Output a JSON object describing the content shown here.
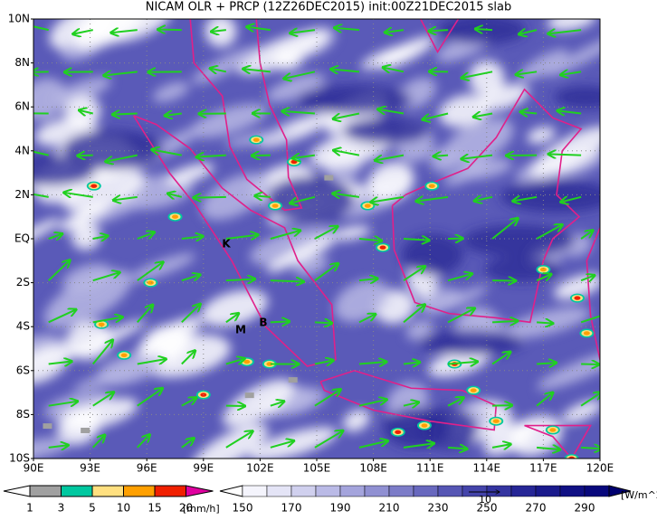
{
  "title": "NICAM OLR + PRCP (12Z26DEC2015) init:00Z21DEC2015 slab",
  "map": {
    "lat_labels": [
      "10N",
      "8N",
      "6N",
      "4N",
      "2N",
      "EQ",
      "2S",
      "4S",
      "6S",
      "8S",
      "10S"
    ],
    "lon_labels": [
      "90E",
      "93E",
      "96E",
      "99E",
      "102E",
      "105E",
      "108E",
      "111E",
      "114E",
      "117E",
      "120E"
    ],
    "place_labels": [
      "K",
      "M",
      "B"
    ]
  },
  "precip_legend": {
    "ticks": [
      "1",
      "3",
      "5",
      "10",
      "15",
      "20"
    ],
    "colors": [
      "#a0a0a0",
      "#00c8a0",
      "#ffe080",
      "#ffa000",
      "#f02000",
      "#e000a0"
    ],
    "unit": "[mm/h]"
  },
  "olr_legend": {
    "ticks": [
      "150",
      "170",
      "190",
      "210",
      "230",
      "250",
      "270",
      "290"
    ],
    "colors": [
      "#f4f4fc",
      "#e4e4f6",
      "#d0d0ee",
      "#babae6",
      "#a4a4dc",
      "#9090d2",
      "#7c7cc8",
      "#6868be",
      "#5656b4",
      "#4444aa",
      "#3434a0",
      "#262696",
      "#1a1a8c",
      "#101084",
      "#08087c",
      "#000070"
    ],
    "unit": "[W/m^2]"
  },
  "vector_reference": "10"
}
